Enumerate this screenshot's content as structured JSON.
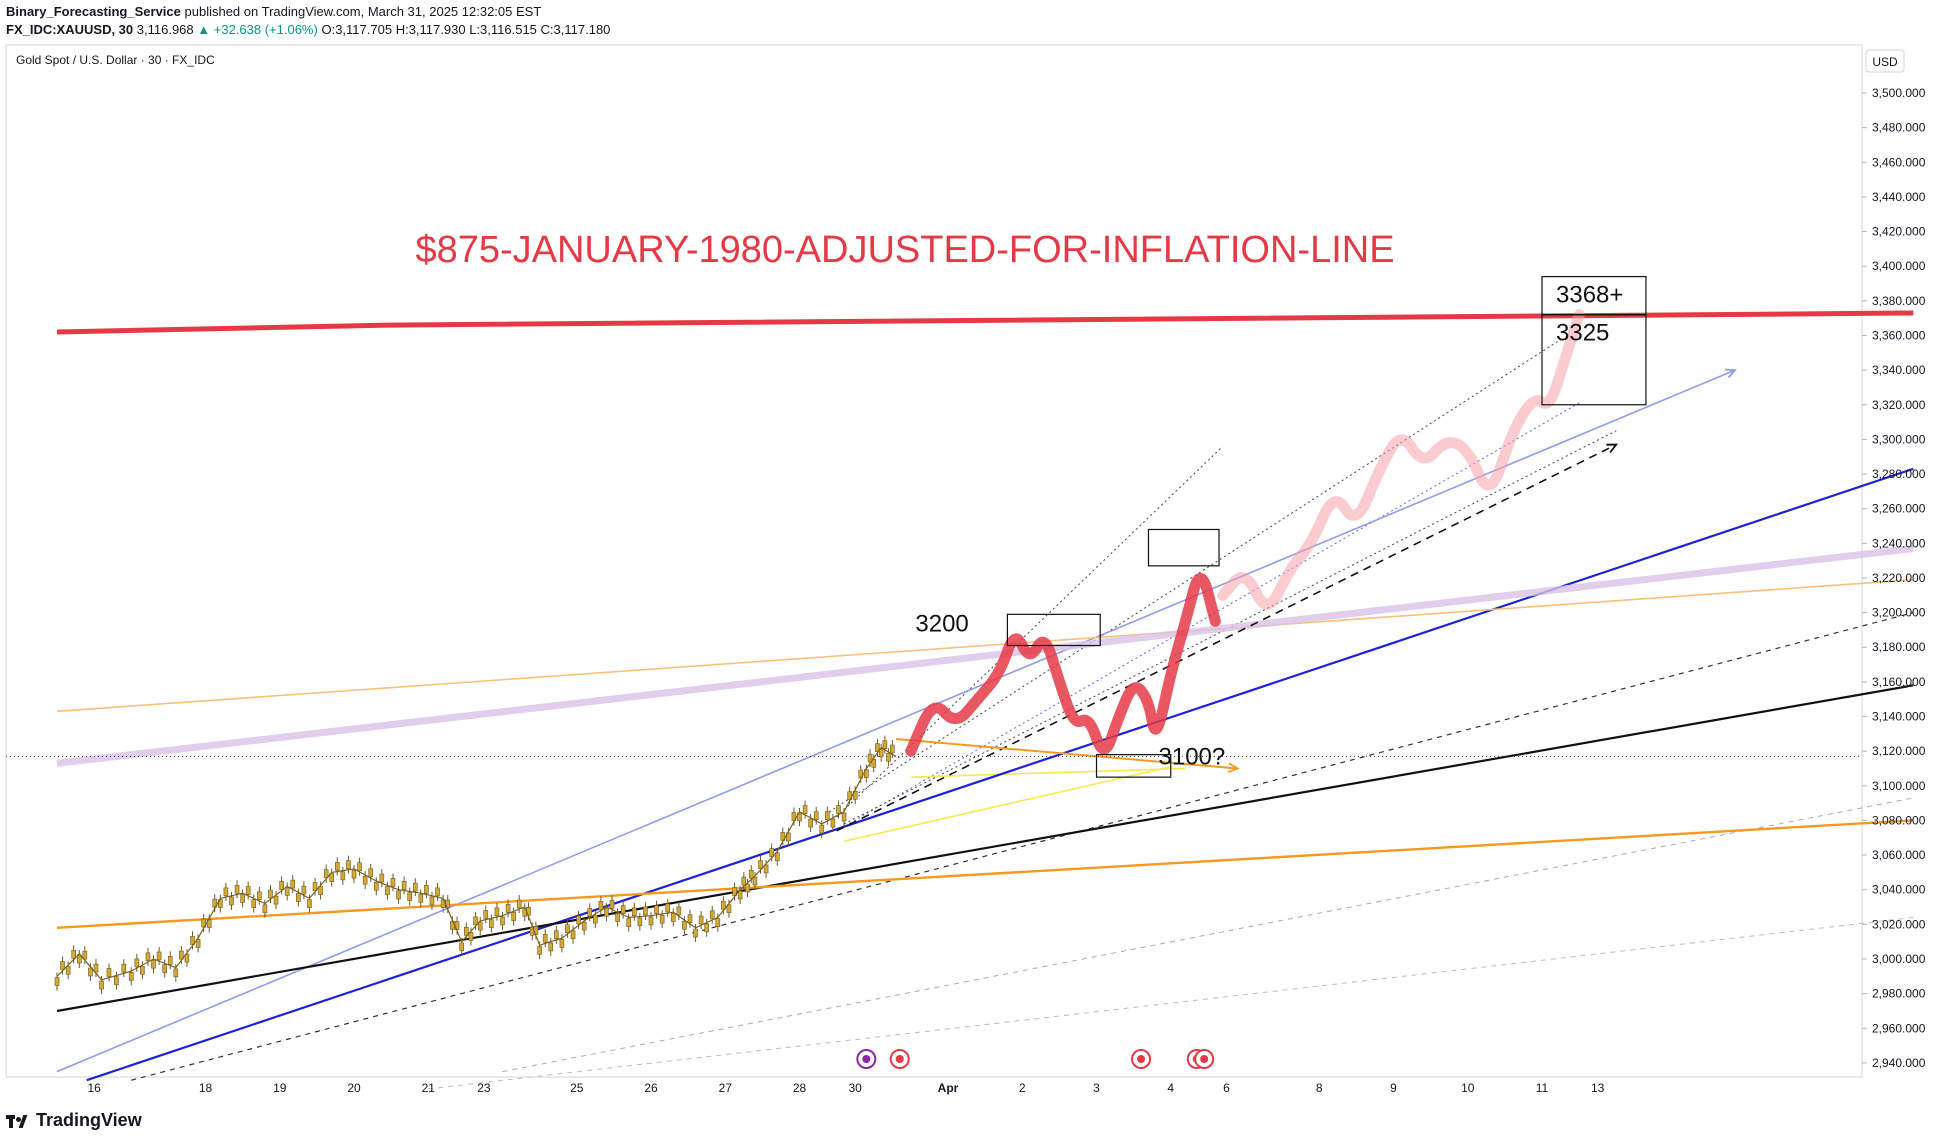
{
  "header": {
    "publisher": "Binary_Forecasting_Service",
    "published_text": "published on TradingView.com, March 31, 2025 12:32:05 EST",
    "symbol": "FX_IDC:XAUUSD, 30",
    "last": "3,116.968",
    "change": "▲ +32.638 (+1.06%)",
    "o_label": "O:",
    "o": "3,117.705",
    "h_label": "H:",
    "h": "3,117.930",
    "l_label": "L:",
    "l": "3,116.515",
    "c_label": "C:",
    "c": "3,117.180"
  },
  "chart_title": "Gold Spot / U.S. Dollar · 30 · FX_IDC",
  "currency": "USD",
  "footer": {
    "brand": "TradingView"
  },
  "colors": {
    "red": "#e53946",
    "blue": "#1c22d8",
    "lightblue": "#8f9cf0",
    "orange": "#f59a1f",
    "lightorange": "#f8c079",
    "lavender": "#d9c2e9",
    "black": "#111111",
    "yellow": "#f5e94e",
    "candle": "#b38c20"
  },
  "chart_data": {
    "type": "line",
    "title": "Gold Spot / U.S. Dollar · 30 · FX_IDC",
    "ylabel": "USD",
    "ylim": [
      2930,
      3510
    ],
    "grid": false,
    "yticks": [
      "3,500.000",
      "3,480.000",
      "3,460.000",
      "3,440.000",
      "3,420.000",
      "3,400.000",
      "3,380.000",
      "3,360.000",
      "3,340.000",
      "3,320.000",
      "3,300.000",
      "3,280.000",
      "3,260.000",
      "3,240.000",
      "3,220.000",
      "3,200.000",
      "3,180.000",
      "3,160.000",
      "3,140.000",
      "3,120.000",
      "3,100.000",
      "3,080.000",
      "3,060.000",
      "3,040.000",
      "3,020.000",
      "3,000.000",
      "2,980.000",
      "2,960.000",
      "2,940.000"
    ],
    "xticks": [
      {
        "label": "16",
        "x": 0.5
      },
      {
        "label": "18",
        "x": 2.0
      },
      {
        "label": "19",
        "x": 3.0
      },
      {
        "label": "20",
        "x": 4.0
      },
      {
        "label": "21",
        "x": 5.0
      },
      {
        "label": "23",
        "x": 5.75
      },
      {
        "label": "25",
        "x": 7.0
      },
      {
        "label": "26",
        "x": 8.0
      },
      {
        "label": "27",
        "x": 9.0
      },
      {
        "label": "28",
        "x": 10.0
      },
      {
        "label": "30",
        "x": 10.75
      },
      {
        "label": "Apr",
        "x": 12.0
      },
      {
        "label": "2",
        "x": 13.0
      },
      {
        "label": "3",
        "x": 14.0
      },
      {
        "label": "4",
        "x": 15.0
      },
      {
        "label": "6",
        "x": 15.75
      },
      {
        "label": "8",
        "x": 17.0
      },
      {
        "label": "9",
        "x": 18.0
      },
      {
        "label": "10",
        "x": 19.0
      },
      {
        "label": "11",
        "x": 20.0
      },
      {
        "label": "13",
        "x": 20.75
      }
    ],
    "series": [
      {
        "name": "XAUUSD price",
        "color": "#b38c20",
        "points": [
          [
            0,
            2990
          ],
          [
            0.3,
            3003
          ],
          [
            0.6,
            2988
          ],
          [
            1.0,
            2993
          ],
          [
            1.3,
            3000
          ],
          [
            1.6,
            2995
          ],
          [
            1.9,
            3012
          ],
          [
            2.2,
            3035
          ],
          [
            2.5,
            3038
          ],
          [
            2.8,
            3032
          ],
          [
            3.1,
            3042
          ],
          [
            3.4,
            3035
          ],
          [
            3.7,
            3050
          ],
          [
            4.0,
            3052
          ],
          [
            4.3,
            3045
          ],
          [
            4.6,
            3040
          ],
          [
            4.9,
            3038
          ],
          [
            5.2,
            3035
          ],
          [
            5.45,
            3010
          ],
          [
            5.7,
            3022
          ],
          [
            6.0,
            3025
          ],
          [
            6.3,
            3030
          ],
          [
            6.5,
            3008
          ],
          [
            6.8,
            3012
          ],
          [
            7.1,
            3022
          ],
          [
            7.4,
            3030
          ],
          [
            7.7,
            3024
          ],
          [
            8.0,
            3025
          ],
          [
            8.3,
            3027
          ],
          [
            8.6,
            3018
          ],
          [
            8.9,
            3024
          ],
          [
            9.2,
            3040
          ],
          [
            9.4,
            3048
          ],
          [
            9.7,
            3062
          ],
          [
            10.0,
            3085
          ],
          [
            10.3,
            3078
          ],
          [
            10.6,
            3085
          ],
          [
            10.9,
            3110
          ],
          [
            11.1,
            3122
          ],
          [
            11.3,
            3117
          ]
        ]
      },
      {
        "name": "projected path",
        "color": "#e53946",
        "points": [
          [
            11.5,
            3120
          ],
          [
            11.8,
            3150
          ],
          [
            12.1,
            3135
          ],
          [
            12.4,
            3150
          ],
          [
            12.7,
            3165
          ],
          [
            12.9,
            3190
          ],
          [
            13.1,
            3172
          ],
          [
            13.3,
            3188
          ],
          [
            13.5,
            3160
          ],
          [
            13.7,
            3135
          ],
          [
            13.9,
            3140
          ],
          [
            14.1,
            3115
          ],
          [
            14.3,
            3140
          ],
          [
            14.5,
            3160
          ],
          [
            14.7,
            3150
          ],
          [
            14.8,
            3125
          ],
          [
            15.0,
            3165
          ],
          [
            15.2,
            3195
          ],
          [
            15.4,
            3228
          ],
          [
            15.6,
            3195
          ]
        ]
      },
      {
        "name": "projected path (continued)",
        "color": "#f6a3a9",
        "points": [
          [
            15.7,
            3210
          ],
          [
            16.0,
            3225
          ],
          [
            16.3,
            3198
          ],
          [
            16.6,
            3225
          ],
          [
            16.9,
            3240
          ],
          [
            17.2,
            3270
          ],
          [
            17.5,
            3250
          ],
          [
            17.8,
            3282
          ],
          [
            18.1,
            3305
          ],
          [
            18.4,
            3285
          ],
          [
            18.7,
            3300
          ],
          [
            19.0,
            3295
          ],
          [
            19.3,
            3265
          ],
          [
            19.6,
            3305
          ],
          [
            19.9,
            3325
          ],
          [
            20.1,
            3318
          ],
          [
            20.3,
            3345
          ],
          [
            20.5,
            3372
          ]
        ]
      },
      {
        "name": "inflation line",
        "color": "#e53946",
        "points": [
          [
            0,
            3362
          ],
          [
            4.5,
            3366
          ],
          [
            25,
            3373
          ]
        ]
      },
      {
        "name": "blue trendline",
        "color": "#1c22d8",
        "points": [
          [
            0.4,
            2930
          ],
          [
            25,
            3283
          ]
        ]
      },
      {
        "name": "light blue trendline",
        "color": "#8f9cf0",
        "points": [
          [
            0,
            2935
          ],
          [
            22.6,
            3340
          ]
        ]
      },
      {
        "name": "black trendline",
        "color": "#111111",
        "points": [
          [
            0,
            2970
          ],
          [
            25,
            3158
          ]
        ]
      },
      {
        "name": "orange trendline",
        "color": "#f59a1f",
        "points": [
          [
            0,
            3018
          ],
          [
            25,
            3080
          ]
        ]
      },
      {
        "name": "light orange trendline",
        "color": "#f8c079",
        "points": [
          [
            0,
            3143
          ],
          [
            25,
            3219
          ]
        ]
      },
      {
        "name": "lavender trendline",
        "color": "#d9c2e9",
        "points": [
          [
            0,
            3113
          ],
          [
            25,
            3237
          ]
        ]
      },
      {
        "name": "dashed projection",
        "color": "#111111",
        "points": [
          [
            10.5,
            3074
          ],
          [
            21.0,
            3297
          ]
        ]
      }
    ],
    "boxes": [
      {
        "label": "3200",
        "x0": 12.8,
        "x1": 14.05,
        "y0": 3181,
        "y1": 3199
      },
      {
        "label": "",
        "x0": 14.7,
        "x1": 15.65,
        "y0": 3227,
        "y1": 3248
      },
      {
        "label": "3100?",
        "x0": 14.0,
        "x1": 15.0,
        "y0": 3105,
        "y1": 3118
      },
      {
        "label": "3368+",
        "x0": 20.0,
        "x1": 21.4,
        "y0": 3372,
        "y1": 3394
      },
      {
        "label": "3325",
        "x0": 20.0,
        "x1": 21.4,
        "y0": 3320,
        "y1": 3372
      }
    ],
    "annotation": "$875-JANUARY-1980-ADJUSTED-FOR-INFLATION-LINE",
    "current_price": 3117
  }
}
